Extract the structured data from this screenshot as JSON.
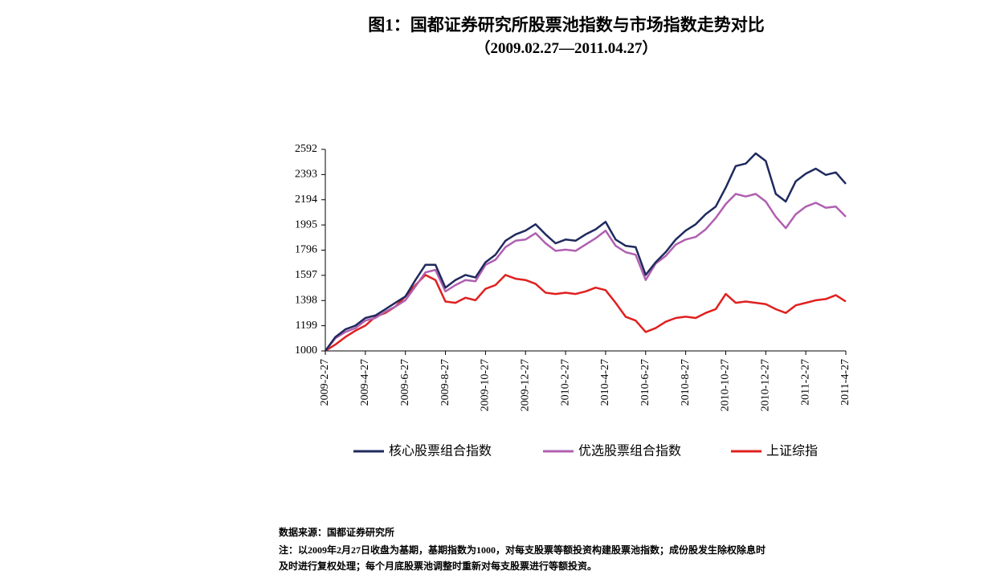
{
  "chart_data": {
    "type": "line",
    "title": "图1：国都证券研究所股票池指数与市场指数走势对比",
    "subtitle": "（2009.02.27—2011.04.27）",
    "categories": [
      "2009-2-27",
      null,
      null,
      null,
      "2009-4-27",
      null,
      null,
      null,
      "2009-6-27",
      null,
      null,
      null,
      "2009-8-27",
      null,
      null,
      null,
      "2009-10-27",
      null,
      null,
      null,
      "2009-12-27",
      null,
      null,
      null,
      "2010-2-27",
      null,
      null,
      null,
      "2010-4-27",
      null,
      null,
      null,
      "2010-6-27",
      null,
      null,
      null,
      "2010-8-27",
      null,
      null,
      null,
      "2010-10-27",
      null,
      null,
      null,
      "2010-12-27",
      null,
      null,
      null,
      "2011-2-27",
      null,
      null,
      null,
      "2011-4-27"
    ],
    "series": [
      {
        "name": "核心股票组合指数",
        "color": "#1f2a5e",
        "values": [
          1000,
          1110,
          1170,
          1200,
          1260,
          1280,
          1330,
          1380,
          1430,
          1560,
          1680,
          1680,
          1500,
          1560,
          1600,
          1580,
          1700,
          1760,
          1870,
          1920,
          1950,
          2000,
          1920,
          1850,
          1880,
          1870,
          1920,
          1960,
          2020,
          1880,
          1830,
          1820,
          1600,
          1700,
          1780,
          1880,
          1950,
          2000,
          2080,
          2140,
          2290,
          2460,
          2480,
          2560,
          2500,
          2240,
          2180,
          2340,
          2400,
          2440,
          2390,
          2410,
          2320
        ]
      },
      {
        "name": "优选股票组合指数",
        "color": "#b060b0",
        "values": [
          1000,
          1100,
          1150,
          1180,
          1240,
          1260,
          1310,
          1350,
          1400,
          1510,
          1620,
          1640,
          1470,
          1520,
          1560,
          1550,
          1680,
          1720,
          1820,
          1870,
          1880,
          1930,
          1850,
          1790,
          1800,
          1790,
          1840,
          1890,
          1950,
          1830,
          1780,
          1760,
          1560,
          1690,
          1750,
          1840,
          1880,
          1900,
          1960,
          2050,
          2160,
          2240,
          2220,
          2240,
          2180,
          2060,
          1970,
          2080,
          2140,
          2170,
          2130,
          2140,
          2060
        ]
      },
      {
        "name": "上证综指",
        "color": "#e02020",
        "values": [
          1000,
          1050,
          1110,
          1160,
          1200,
          1270,
          1300,
          1350,
          1430,
          1520,
          1600,
          1560,
          1390,
          1380,
          1420,
          1400,
          1490,
          1520,
          1600,
          1570,
          1560,
          1530,
          1460,
          1450,
          1460,
          1450,
          1470,
          1500,
          1480,
          1380,
          1270,
          1240,
          1150,
          1180,
          1230,
          1260,
          1270,
          1260,
          1300,
          1330,
          1450,
          1380,
          1390,
          1380,
          1370,
          1330,
          1300,
          1360,
          1380,
          1400,
          1410,
          1440,
          1390
        ]
      }
    ],
    "ylim": [
      1000,
      2592
    ],
    "yticks": [
      1000,
      1199,
      1398,
      1597,
      1796,
      1995,
      2194,
      2393,
      2592
    ],
    "source": "数据来源：国都证券研究所",
    "note": [
      "注：以2009年2月27日收盘为基期，基期指数为1000，对每支股票等额投资构建股票池指数；成份股发生除权除息时",
      "及时进行复权处理；每个月底股票池调整时重新对每支股票进行等额投资。"
    ]
  }
}
